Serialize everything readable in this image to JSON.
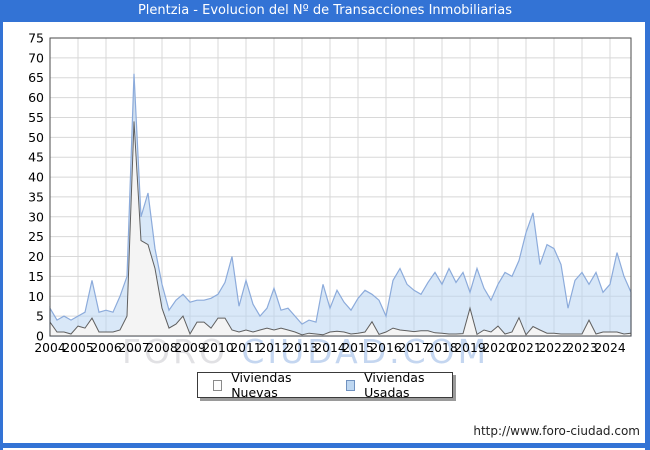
{
  "footer_url": "http://www.foro-ciudad.com",
  "watermark": {
    "part1": "FORO ",
    "part2": "CIUDAD.COM"
  },
  "colors": {
    "titlebar": "#3373d5",
    "border": "#3373d5",
    "grid": "#d8d8d8",
    "axis": "#4a4a4a",
    "nuevas_fill": "#f4f4f4",
    "nuevas_stroke": "#5f5f5f",
    "usadas_fill": "rgba(186,214,242,0.55)",
    "usadas_stroke": "#8cabdb",
    "footer_text": "#222222"
  },
  "chart_data": {
    "type": "area",
    "title": "Plentzia - Evolucion del Nº de Transacciones Inmobiliarias",
    "x_unit": "quarter",
    "x_start_year": 2004,
    "points_per_year": 4,
    "x_tick_labels": [
      "2004",
      "2005",
      "2006",
      "2007",
      "2008",
      "2009",
      "2010",
      "2011",
      "2012",
      "2013",
      "2014",
      "2015",
      "2016",
      "2017",
      "2018",
      "2019",
      "2020",
      "2021",
      "2022",
      "2023",
      "2024"
    ],
    "ylim": [
      0,
      75
    ],
    "ytick_step": 5,
    "grid": true,
    "legend_position": "bottom",
    "series": [
      {
        "name": "Viviendas Nuevas",
        "values": [
          3.5,
          1,
          1,
          0.5,
          2.5,
          2,
          4.5,
          1,
          1,
          1,
          1.5,
          5,
          54,
          24,
          23,
          17,
          7,
          2,
          3,
          5,
          0.5,
          3.5,
          3.5,
          2,
          4.5,
          4.5,
          1.5,
          1,
          1.5,
          1,
          1.5,
          2,
          1.5,
          2,
          1.5,
          1,
          0.3,
          0.7,
          0.5,
          0.3,
          1,
          1.2,
          1,
          0.5,
          0.7,
          1,
          3.6,
          0.4,
          1,
          2,
          1.5,
          1.3,
          1.1,
          1.3,
          1.3,
          0.8,
          0.7,
          0.5,
          0.5,
          0.6,
          7,
          0.4,
          1.5,
          1,
          2.5,
          0.5,
          1,
          4.6,
          0.3,
          2.4,
          1.5,
          0.7,
          0.7,
          0.5,
          0.5,
          0.5,
          0.5,
          4,
          0.5,
          1,
          1,
          1,
          0.5,
          0.7
        ]
      },
      {
        "name": "Viviendas Usadas",
        "values": [
          7,
          4,
          5,
          4,
          5,
          6,
          14,
          6,
          6.5,
          6,
          10,
          15,
          66,
          30,
          36,
          22,
          13,
          6.5,
          9,
          10.5,
          8.5,
          9,
          9,
          9.5,
          10.5,
          13.5,
          20,
          7.5,
          14,
          8,
          5,
          7,
          12,
          6.5,
          7,
          5,
          3,
          4,
          3.5,
          13,
          7,
          11.5,
          8.5,
          6.5,
          9.5,
          11.5,
          10.5,
          9,
          5,
          14,
          17,
          13,
          11.5,
          10.5,
          13.5,
          16,
          13,
          17,
          13.5,
          16,
          11,
          17,
          12,
          9,
          13,
          16,
          15,
          19,
          26,
          31,
          18,
          23,
          22,
          18,
          7,
          14,
          16,
          13,
          16,
          11,
          13,
          21,
          15,
          11
        ]
      }
    ]
  }
}
